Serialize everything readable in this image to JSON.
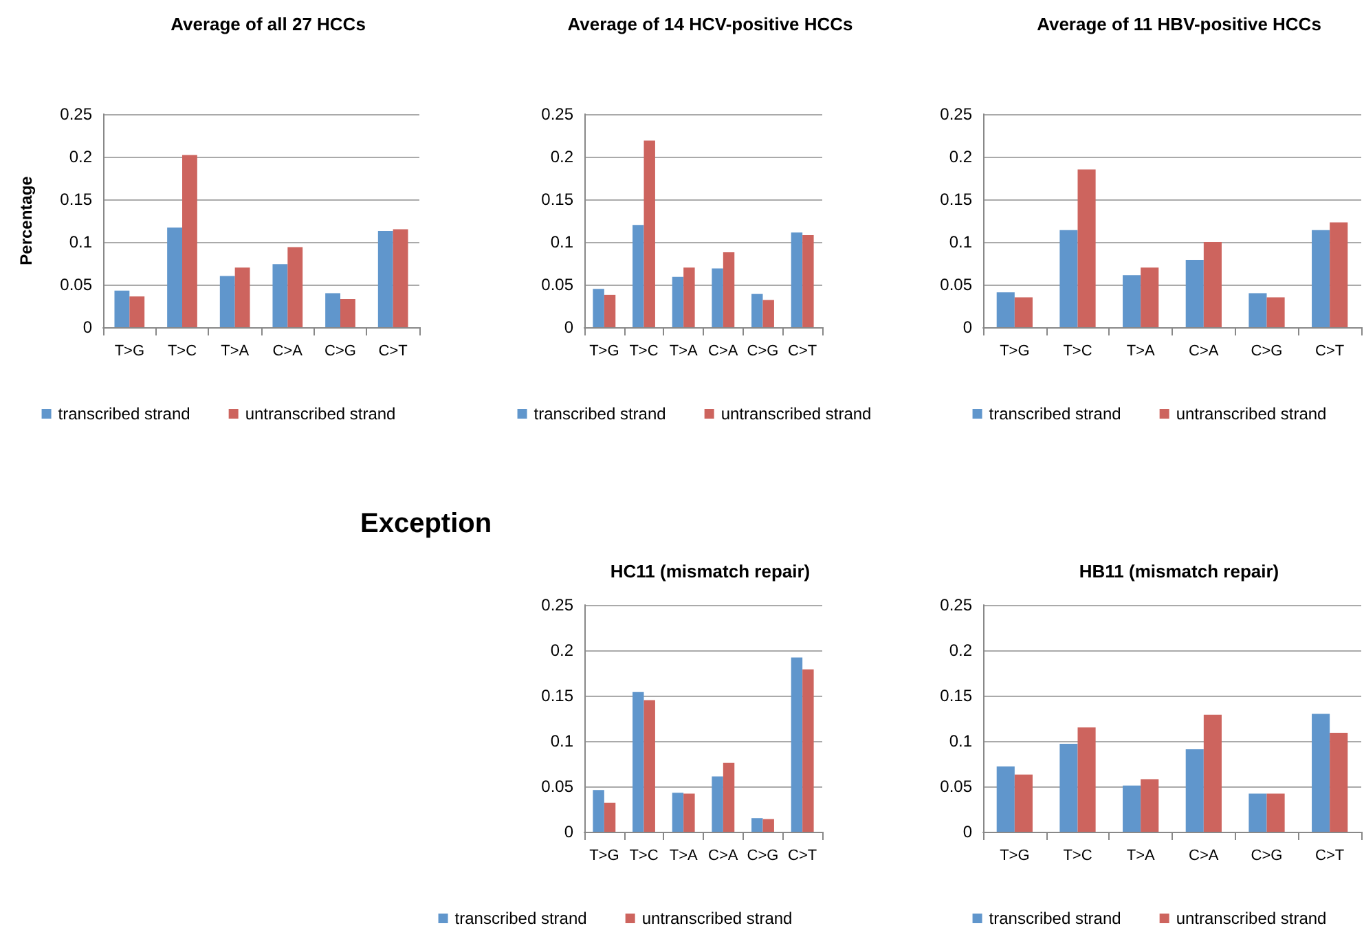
{
  "chart_data": [
    {
      "type": "bar",
      "title": "Average of all 27 HCCs",
      "ylabel": "Percentage",
      "categories": [
        "T>G",
        "T>C",
        "T>A",
        "C>A",
        "C>G",
        "C>T"
      ],
      "series": [
        {
          "name": "transcribed strand",
          "color": "#6096cc",
          "values": [
            0.043,
            0.117,
            0.06,
            0.074,
            0.04,
            0.113
          ]
        },
        {
          "name": "untranscribed strand",
          "color": "#cd645e",
          "values": [
            0.036,
            0.202,
            0.07,
            0.094,
            0.033,
            0.115
          ]
        }
      ],
      "ylim": [
        0,
        0.25
      ],
      "yticks": [
        0,
        0.05,
        0.1,
        0.15,
        0.2,
        0.25
      ],
      "grid": "y",
      "legend": "bottom"
    },
    {
      "type": "bar",
      "title": "Average of 14 HCV-positive HCCs",
      "categories": [
        "T>G",
        "T>C",
        "T>A",
        "C>A",
        "C>G",
        "C>T"
      ],
      "series": [
        {
          "name": "transcribed strand",
          "color": "#6096cc",
          "values": [
            0.045,
            0.12,
            0.059,
            0.069,
            0.039,
            0.111
          ]
        },
        {
          "name": "untranscribed strand",
          "color": "#cd645e",
          "values": [
            0.038,
            0.219,
            0.07,
            0.088,
            0.032,
            0.108
          ]
        }
      ],
      "ylim": [
        0,
        0.25
      ],
      "yticks": [
        0,
        0.05,
        0.1,
        0.15,
        0.2,
        0.25
      ],
      "grid": "y",
      "legend": "bottom"
    },
    {
      "type": "bar",
      "title": "Average of 11 HBV-positive HCCs",
      "categories": [
        "T>G",
        "T>C",
        "T>A",
        "C>A",
        "C>G",
        "C>T"
      ],
      "series": [
        {
          "name": "transcribed strand",
          "color": "#6096cc",
          "values": [
            0.041,
            0.114,
            0.061,
            0.079,
            0.04,
            0.114
          ]
        },
        {
          "name": "untranscribed strand",
          "color": "#cd645e",
          "values": [
            0.035,
            0.185,
            0.07,
            0.1,
            0.035,
            0.123
          ]
        }
      ],
      "ylim": [
        0,
        0.25
      ],
      "yticks": [
        0,
        0.05,
        0.1,
        0.15,
        0.2,
        0.25
      ],
      "grid": "y",
      "legend": "bottom"
    },
    {
      "type": "bar",
      "title": "HC11 (mismatch repair)",
      "annotations": [
        "Exception"
      ],
      "categories": [
        "T>G",
        "T>C",
        "T>A",
        "C>A",
        "C>G",
        "C>T"
      ],
      "series": [
        {
          "name": "transcribed strand",
          "color": "#6096cc",
          "values": [
            0.046,
            0.154,
            0.043,
            0.061,
            0.015,
            0.192
          ]
        },
        {
          "name": "untranscribed strand",
          "color": "#cd645e",
          "values": [
            0.032,
            0.145,
            0.042,
            0.076,
            0.014,
            0.179
          ]
        }
      ],
      "ylim": [
        0,
        0.25
      ],
      "yticks": [
        0,
        0.05,
        0.1,
        0.15,
        0.2,
        0.25
      ],
      "grid": "y",
      "legend": "bottom"
    },
    {
      "type": "bar",
      "title": "HB11 (mismatch repair)",
      "categories": [
        "T>G",
        "T>C",
        "T>A",
        "C>A",
        "C>G",
        "C>T"
      ],
      "series": [
        {
          "name": "transcribed strand",
          "color": "#6096cc",
          "values": [
            0.072,
            0.097,
            0.051,
            0.091,
            0.042,
            0.13
          ]
        },
        {
          "name": "untranscribed strand",
          "color": "#cd645e",
          "values": [
            0.063,
            0.115,
            0.058,
            0.129,
            0.042,
            0.109
          ]
        }
      ],
      "ylim": [
        0,
        0.25
      ],
      "yticks": [
        0,
        0.05,
        0.1,
        0.15,
        0.2,
        0.25
      ],
      "grid": "y",
      "legend": "bottom"
    }
  ]
}
